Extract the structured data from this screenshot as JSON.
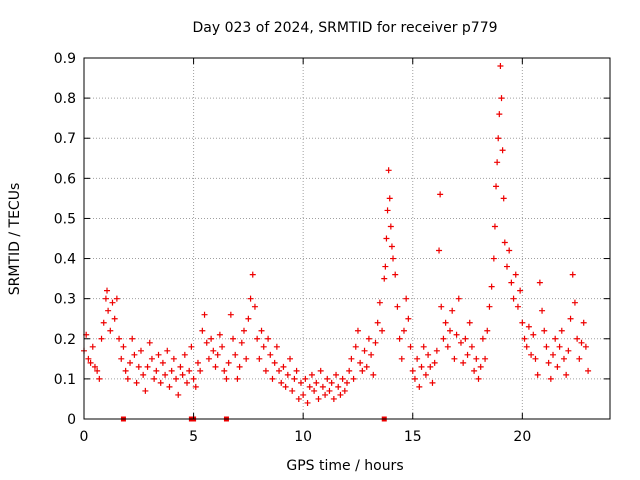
{
  "chart_data": {
    "type": "scatter",
    "title": "Day 023 of 2024, SRMTID for receiver p779",
    "xlabel": "GPS time / hours",
    "ylabel": "SRMTID / TECUs",
    "xlim": [
      0,
      24
    ],
    "ylim": [
      0,
      0.9
    ],
    "grid": true,
    "marker": "+",
    "xticks": [
      {
        "value": 0,
        "label": "0"
      },
      {
        "value": 5,
        "label": "5"
      },
      {
        "value": 10,
        "label": "10"
      },
      {
        "value": 15,
        "label": "15"
      },
      {
        "value": 20,
        "label": "20"
      }
    ],
    "yticks": [
      {
        "value": 0,
        "label": "0"
      },
      {
        "value": 0.1,
        "label": "0.1"
      },
      {
        "value": 0.2,
        "label": "0.2"
      },
      {
        "value": 0.3,
        "label": "0.3"
      },
      {
        "value": 0.4,
        "label": "0.4"
      },
      {
        "value": 0.5,
        "label": "0.5"
      },
      {
        "value": 0.6,
        "label": "0.6"
      },
      {
        "value": 0.7,
        "label": "0.7"
      },
      {
        "value": 0.8,
        "label": "0.8"
      },
      {
        "value": 0.9,
        "label": "0.9"
      }
    ],
    "series": [
      {
        "name": "SRMTID",
        "color": "#ee0000",
        "points": [
          [
            0.0,
            0.17
          ],
          [
            0.1,
            0.21
          ],
          [
            0.2,
            0.15
          ],
          [
            0.3,
            0.14
          ],
          [
            0.4,
            0.18
          ],
          [
            0.5,
            0.13
          ],
          [
            0.6,
            0.12
          ],
          [
            0.7,
            0.1
          ],
          [
            0.8,
            0.2
          ],
          [
            0.9,
            0.24
          ],
          [
            1.0,
            0.3
          ],
          [
            1.05,
            0.32
          ],
          [
            1.1,
            0.27
          ],
          [
            1.2,
            0.22
          ],
          [
            1.3,
            0.29
          ],
          [
            1.4,
            0.25
          ],
          [
            1.5,
            0.3
          ],
          [
            1.6,
            0.2
          ],
          [
            1.7,
            0.15
          ],
          [
            1.8,
            0.18
          ],
          [
            1.9,
            0.12
          ],
          [
            2.0,
            0.1
          ],
          [
            2.1,
            0.14
          ],
          [
            2.2,
            0.2
          ],
          [
            2.3,
            0.16
          ],
          [
            2.4,
            0.09
          ],
          [
            2.5,
            0.13
          ],
          [
            2.6,
            0.17
          ],
          [
            2.7,
            0.11
          ],
          [
            2.8,
            0.07
          ],
          [
            2.9,
            0.13
          ],
          [
            3.0,
            0.19
          ],
          [
            3.1,
            0.15
          ],
          [
            3.2,
            0.1
          ],
          [
            3.3,
            0.12
          ],
          [
            3.4,
            0.16
          ],
          [
            3.5,
            0.09
          ],
          [
            3.6,
            0.14
          ],
          [
            3.7,
            0.11
          ],
          [
            3.8,
            0.17
          ],
          [
            3.9,
            0.08
          ],
          [
            4.0,
            0.12
          ],
          [
            4.1,
            0.15
          ],
          [
            4.2,
            0.1
          ],
          [
            4.3,
            0.06
          ],
          [
            4.4,
            0.13
          ],
          [
            4.5,
            0.11
          ],
          [
            4.6,
            0.16
          ],
          [
            4.7,
            0.09
          ],
          [
            4.8,
            0.12
          ],
          [
            4.9,
            0.18
          ],
          [
            5.0,
            0.1
          ],
          [
            5.1,
            0.08
          ],
          [
            5.2,
            0.14
          ],
          [
            5.3,
            0.12
          ],
          [
            5.4,
            0.22
          ],
          [
            5.5,
            0.26
          ],
          [
            5.6,
            0.19
          ],
          [
            5.7,
            0.15
          ],
          [
            5.8,
            0.2
          ],
          [
            5.9,
            0.17
          ],
          [
            6.0,
            0.13
          ],
          [
            6.1,
            0.16
          ],
          [
            6.2,
            0.21
          ],
          [
            6.3,
            0.18
          ],
          [
            6.4,
            0.12
          ],
          [
            6.5,
            0.1
          ],
          [
            6.6,
            0.14
          ],
          [
            6.7,
            0.26
          ],
          [
            6.8,
            0.2
          ],
          [
            6.9,
            0.16
          ],
          [
            7.0,
            0.1
          ],
          [
            7.1,
            0.13
          ],
          [
            7.2,
            0.19
          ],
          [
            7.3,
            0.22
          ],
          [
            7.4,
            0.15
          ],
          [
            7.5,
            0.25
          ],
          [
            7.6,
            0.3
          ],
          [
            7.7,
            0.36
          ],
          [
            7.8,
            0.28
          ],
          [
            7.9,
            0.2
          ],
          [
            8.0,
            0.15
          ],
          [
            8.1,
            0.22
          ],
          [
            8.2,
            0.18
          ],
          [
            8.3,
            0.12
          ],
          [
            8.4,
            0.2
          ],
          [
            8.5,
            0.16
          ],
          [
            8.6,
            0.1
          ],
          [
            8.7,
            0.14
          ],
          [
            8.8,
            0.18
          ],
          [
            8.9,
            0.12
          ],
          [
            9.0,
            0.09
          ],
          [
            9.1,
            0.13
          ],
          [
            9.2,
            0.08
          ],
          [
            9.3,
            0.11
          ],
          [
            9.4,
            0.15
          ],
          [
            9.5,
            0.07
          ],
          [
            9.6,
            0.1
          ],
          [
            9.7,
            0.12
          ],
          [
            9.8,
            0.05
          ],
          [
            9.9,
            0.09
          ],
          [
            10.0,
            0.06
          ],
          [
            10.1,
            0.1
          ],
          [
            10.2,
            0.04
          ],
          [
            10.3,
            0.08
          ],
          [
            10.4,
            0.11
          ],
          [
            10.5,
            0.07
          ],
          [
            10.6,
            0.09
          ],
          [
            10.7,
            0.05
          ],
          [
            10.8,
            0.12
          ],
          [
            10.9,
            0.08
          ],
          [
            11.0,
            0.06
          ],
          [
            11.1,
            0.1
          ],
          [
            11.2,
            0.07
          ],
          [
            11.3,
            0.09
          ],
          [
            11.4,
            0.05
          ],
          [
            11.5,
            0.11
          ],
          [
            11.6,
            0.08
          ],
          [
            11.7,
            0.06
          ],
          [
            11.8,
            0.1
          ],
          [
            11.9,
            0.07
          ],
          [
            12.0,
            0.09
          ],
          [
            12.1,
            0.12
          ],
          [
            12.2,
            0.15
          ],
          [
            12.3,
            0.1
          ],
          [
            12.4,
            0.18
          ],
          [
            12.5,
            0.22
          ],
          [
            12.6,
            0.14
          ],
          [
            12.7,
            0.12
          ],
          [
            12.8,
            0.17
          ],
          [
            12.9,
            0.13
          ],
          [
            13.0,
            0.2
          ],
          [
            13.1,
            0.16
          ],
          [
            13.2,
            0.11
          ],
          [
            13.3,
            0.19
          ],
          [
            13.4,
            0.24
          ],
          [
            13.5,
            0.29
          ],
          [
            13.6,
            0.22
          ],
          [
            13.7,
            0.35
          ],
          [
            13.75,
            0.38
          ],
          [
            13.8,
            0.45
          ],
          [
            13.85,
            0.52
          ],
          [
            13.9,
            0.62
          ],
          [
            13.95,
            0.55
          ],
          [
            14.0,
            0.48
          ],
          [
            14.05,
            0.43
          ],
          [
            14.1,
            0.4
          ],
          [
            14.2,
            0.36
          ],
          [
            14.3,
            0.28
          ],
          [
            14.4,
            0.2
          ],
          [
            14.5,
            0.15
          ],
          [
            14.6,
            0.22
          ],
          [
            14.7,
            0.3
          ],
          [
            14.8,
            0.25
          ],
          [
            14.9,
            0.18
          ],
          [
            15.0,
            0.12
          ],
          [
            15.1,
            0.1
          ],
          [
            15.2,
            0.15
          ],
          [
            15.3,
            0.08
          ],
          [
            15.4,
            0.13
          ],
          [
            15.5,
            0.18
          ],
          [
            15.6,
            0.11
          ],
          [
            15.7,
            0.16
          ],
          [
            15.8,
            0.13
          ],
          [
            15.9,
            0.09
          ],
          [
            16.0,
            0.14
          ],
          [
            16.1,
            0.17
          ],
          [
            16.2,
            0.42
          ],
          [
            16.25,
            0.56
          ],
          [
            16.3,
            0.28
          ],
          [
            16.4,
            0.2
          ],
          [
            16.5,
            0.24
          ],
          [
            16.6,
            0.18
          ],
          [
            16.7,
            0.22
          ],
          [
            16.8,
            0.27
          ],
          [
            16.9,
            0.15
          ],
          [
            17.0,
            0.21
          ],
          [
            17.1,
            0.3
          ],
          [
            17.2,
            0.19
          ],
          [
            17.3,
            0.14
          ],
          [
            17.4,
            0.2
          ],
          [
            17.5,
            0.16
          ],
          [
            17.6,
            0.24
          ],
          [
            17.7,
            0.18
          ],
          [
            17.8,
            0.12
          ],
          [
            17.9,
            0.15
          ],
          [
            18.0,
            0.1
          ],
          [
            18.1,
            0.13
          ],
          [
            18.2,
            0.2
          ],
          [
            18.3,
            0.15
          ],
          [
            18.4,
            0.22
          ],
          [
            18.5,
            0.28
          ],
          [
            18.6,
            0.33
          ],
          [
            18.7,
            0.4
          ],
          [
            18.75,
            0.48
          ],
          [
            18.8,
            0.58
          ],
          [
            18.85,
            0.64
          ],
          [
            18.9,
            0.7
          ],
          [
            18.95,
            0.76
          ],
          [
            19.0,
            0.88
          ],
          [
            19.05,
            0.8
          ],
          [
            19.1,
            0.67
          ],
          [
            19.15,
            0.55
          ],
          [
            19.2,
            0.44
          ],
          [
            19.3,
            0.38
          ],
          [
            19.4,
            0.42
          ],
          [
            19.5,
            0.34
          ],
          [
            19.6,
            0.3
          ],
          [
            19.7,
            0.36
          ],
          [
            19.8,
            0.28
          ],
          [
            19.9,
            0.32
          ],
          [
            20.0,
            0.24
          ],
          [
            20.1,
            0.2
          ],
          [
            20.2,
            0.18
          ],
          [
            20.3,
            0.23
          ],
          [
            20.4,
            0.16
          ],
          [
            20.5,
            0.21
          ],
          [
            20.6,
            0.15
          ],
          [
            20.7,
            0.11
          ],
          [
            20.8,
            0.34
          ],
          [
            20.9,
            0.27
          ],
          [
            21.0,
            0.22
          ],
          [
            21.1,
            0.18
          ],
          [
            21.2,
            0.14
          ],
          [
            21.3,
            0.1
          ],
          [
            21.4,
            0.16
          ],
          [
            21.5,
            0.2
          ],
          [
            21.6,
            0.13
          ],
          [
            21.7,
            0.18
          ],
          [
            21.8,
            0.22
          ],
          [
            21.9,
            0.15
          ],
          [
            22.0,
            0.11
          ],
          [
            22.1,
            0.17
          ],
          [
            22.2,
            0.25
          ],
          [
            22.3,
            0.36
          ],
          [
            22.4,
            0.29
          ],
          [
            22.5,
            0.2
          ],
          [
            22.6,
            0.15
          ],
          [
            22.7,
            0.19
          ],
          [
            22.8,
            0.24
          ],
          [
            22.9,
            0.18
          ],
          [
            23.0,
            0.12
          ]
        ]
      },
      {
        "name": "SRMTID (zero-value flags)",
        "color": "#ee0000",
        "marker": "square",
        "points": [
          [
            1.8,
            0.0
          ],
          [
            4.9,
            0.0
          ],
          [
            5.0,
            0.0
          ],
          [
            6.5,
            0.0
          ],
          [
            13.7,
            0.0
          ]
        ]
      }
    ]
  }
}
